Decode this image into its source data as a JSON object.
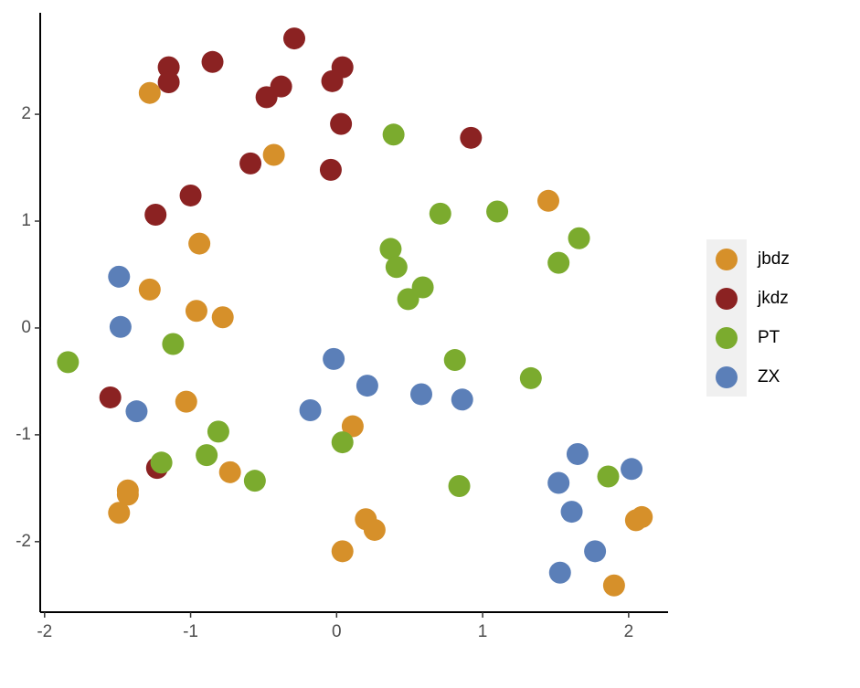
{
  "chart_data": {
    "type": "scatter",
    "xlim": [
      -2.03,
      2.27
    ],
    "ylim": [
      -2.66,
      2.95
    ],
    "xticks": [
      -2,
      -1,
      0,
      1,
      2
    ],
    "yticks": [
      -2,
      -1,
      0,
      1,
      2
    ],
    "legend": "right",
    "series": [
      {
        "name": "jbdz",
        "color": "#d6902a",
        "x": [
          -1.28,
          -0.43,
          1.45,
          -0.94,
          -1.28,
          -0.96,
          -0.78,
          -1.03,
          0.11,
          -1.43,
          -1.43,
          -1.49,
          -0.73,
          0.2,
          0.26,
          0.04,
          1.9,
          2.05,
          2.09
        ],
        "values": [
          2.2,
          1.62,
          1.19,
          0.79,
          0.36,
          0.16,
          0.1,
          -0.69,
          -0.92,
          -1.52,
          -1.56,
          -1.73,
          -1.35,
          -1.79,
          -1.89,
          -2.09,
          -2.41,
          -1.8,
          -1.77
        ]
      },
      {
        "name": "jkdz",
        "color": "#8b2222",
        "x": [
          -0.29,
          -1.15,
          -0.85,
          -1.15,
          0.04,
          -0.38,
          -0.48,
          -0.03,
          0.03,
          0.92,
          -0.59,
          -0.04,
          -1.0,
          -1.24,
          -1.55,
          -1.23
        ],
        "values": [
          2.71,
          2.44,
          2.49,
          2.3,
          2.44,
          2.26,
          2.16,
          2.31,
          1.91,
          1.78,
          1.54,
          1.48,
          1.24,
          1.06,
          -0.65,
          -1.31
        ]
      },
      {
        "name": "PT",
        "color": "#7bab2e",
        "x": [
          0.39,
          0.71,
          1.1,
          1.66,
          1.52,
          0.37,
          0.41,
          0.59,
          0.49,
          -1.12,
          -1.84,
          0.81,
          1.33,
          -0.81,
          -0.89,
          -1.2,
          -0.56,
          0.04,
          0.84,
          1.86
        ],
        "values": [
          1.81,
          1.07,
          1.09,
          0.84,
          0.61,
          0.74,
          0.57,
          0.38,
          0.27,
          -0.15,
          -0.32,
          -0.3,
          -0.47,
          -0.97,
          -1.19,
          -1.26,
          -1.43,
          -1.07,
          -1.48,
          -1.39
        ]
      },
      {
        "name": "ZX",
        "color": "#5b7fb8",
        "x": [
          -1.49,
          -1.48,
          -1.37,
          -0.18,
          -0.02,
          0.21,
          0.58,
          0.86,
          1.65,
          1.52,
          2.02,
          1.61,
          1.77,
          1.53
        ],
        "values": [
          0.48,
          0.01,
          -0.78,
          -0.77,
          -0.29,
          -0.54,
          -0.62,
          -0.67,
          -1.18,
          -1.45,
          -1.32,
          -1.72,
          -2.09,
          -2.29
        ]
      }
    ]
  }
}
